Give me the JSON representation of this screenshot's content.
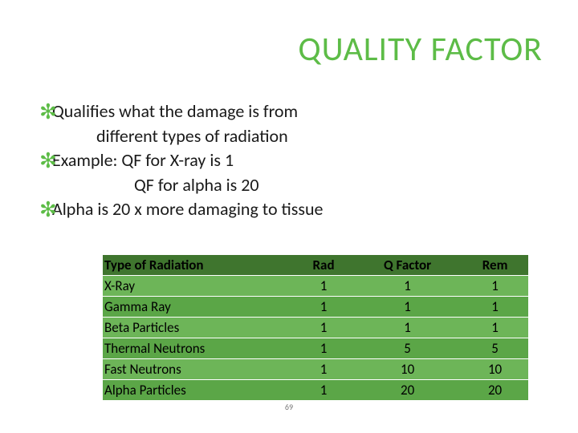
{
  "title": {
    "text": "QUALITY FACTOR",
    "color": "#5dbc47",
    "fontsize": 42
  },
  "asterisk": {
    "color": "#5dbc47"
  },
  "bullets": {
    "color": "#1a1a1a",
    "fontsize": 22,
    "lines": {
      "l0": "Qualifies what the damage is from",
      "l1": "different types of radiation",
      "l2": "Example:  QF  for X-ray is 1",
      "l3": "QF for alpha is  20",
      "l4": "Alpha is 20 x more damaging to tissue"
    }
  },
  "table": {
    "header_bg": "#3f752e",
    "header_text_color": "#000000",
    "row_odd_bg": "#6db558",
    "row_even_bg": "#5ba647",
    "row_divider": "#ffffff",
    "columns": [
      "Type of Radiation",
      "Rad",
      "Q Factor",
      "Rem"
    ],
    "rows": [
      [
        "X-Ray",
        "1",
        "1",
        "1"
      ],
      [
        "Gamma Ray",
        "1",
        "1",
        "1"
      ],
      [
        "Beta Particles",
        "1",
        "1",
        "1"
      ],
      [
        "Thermal Neutrons",
        "1",
        "5",
        "5"
      ],
      [
        "Fast Neutrons",
        "1",
        "10",
        "10"
      ],
      [
        "Alpha Particles",
        "1",
        "20",
        "20"
      ]
    ]
  },
  "page_number": "69"
}
